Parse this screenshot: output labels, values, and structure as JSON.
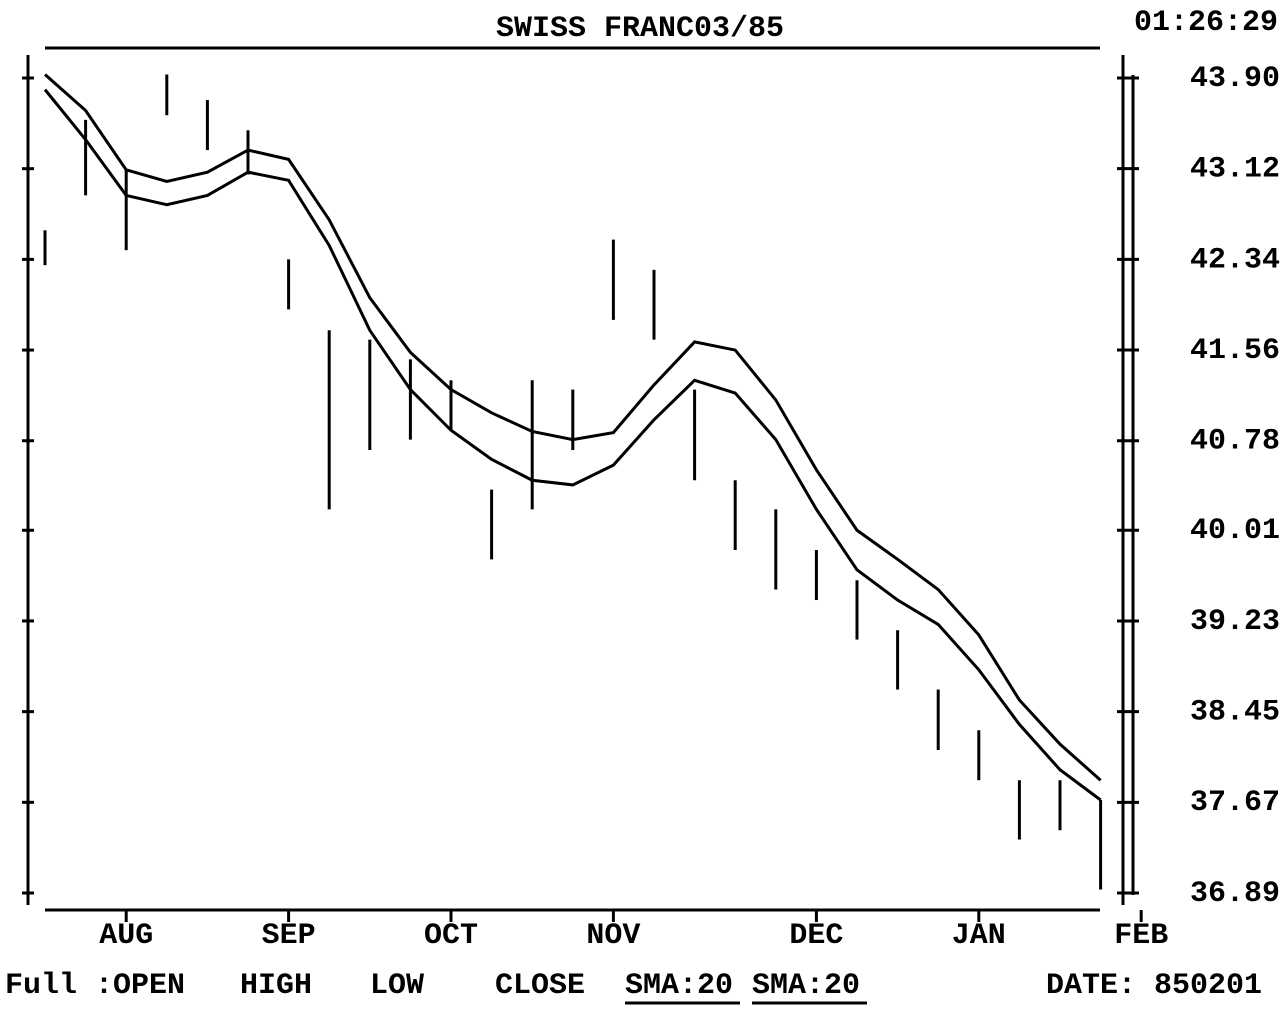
{
  "chart_data": {
    "type": "hilo-line",
    "title": "SWISS FRANC03/85",
    "time": "01:26:29",
    "legend_prefix": "Full :OPEN",
    "close_label": "CLOSE",
    "date_label": "DATE: 850201",
    "categories": [
      null,
      null,
      "AUG",
      null,
      null,
      null,
      "SEP",
      null,
      null,
      null,
      "OCT",
      null,
      null,
      null,
      "NOV",
      null,
      null,
      null,
      null,
      "DEC",
      null,
      null,
      null,
      "JAN",
      null,
      null,
      null,
      "FEB"
    ],
    "series": [
      {
        "name": "HIGH",
        "color": "#000000",
        "values": [
          42.59,
          43.54,
          43.11,
          43.93,
          43.71,
          43.45,
          42.34,
          41.73,
          41.65,
          41.48,
          41.3,
          40.36,
          41.3,
          41.22,
          42.51,
          42.25,
          41.22,
          40.44,
          40.19,
          39.84,
          39.58,
          39.15,
          38.64,
          38.29,
          37.86,
          37.86,
          37.69,
          null
        ]
      },
      {
        "name": "LOW",
        "color": "#000000",
        "values": [
          42.29,
          42.89,
          42.42,
          43.58,
          43.28,
          43.07,
          41.91,
          40.19,
          40.7,
          40.79,
          40.87,
          39.76,
          40.19,
          40.7,
          41.82,
          41.65,
          40.44,
          39.84,
          39.5,
          39.41,
          39.07,
          38.64,
          38.12,
          37.86,
          37.35,
          37.43,
          36.92,
          null
        ]
      },
      {
        "name": "SMA:20",
        "color": "#000000",
        "values": [
          43.93,
          43.62,
          43.11,
          43.01,
          43.09,
          43.28,
          43.2,
          42.68,
          42.01,
          41.54,
          41.22,
          41.02,
          40.86,
          40.79,
          40.85,
          41.26,
          41.63,
          41.56,
          41.13,
          40.53,
          40.01,
          39.76,
          39.5,
          39.11,
          38.55,
          38.17,
          37.86,
          null
        ]
      },
      {
        "name": "SMA:20",
        "color": "#000000",
        "values": [
          43.8,
          43.37,
          42.89,
          42.81,
          42.89,
          43.09,
          43.02,
          42.46,
          41.73,
          41.22,
          40.87,
          40.62,
          40.44,
          40.4,
          40.57,
          40.96,
          41.3,
          41.19,
          40.79,
          40.19,
          39.67,
          39.41,
          39.2,
          38.81,
          38.34,
          37.95,
          37.69,
          null
        ]
      }
    ],
    "ylim": [
      36.89,
      43.9
    ],
    "yticks": [
      {
        "value": 43.9,
        "label": "43.90"
      },
      43.12,
      42.34,
      41.56,
      {
        "value": 40.78,
        "label": "40.78"
      },
      40.01,
      39.23,
      38.45,
      37.67,
      36.89
    ]
  }
}
